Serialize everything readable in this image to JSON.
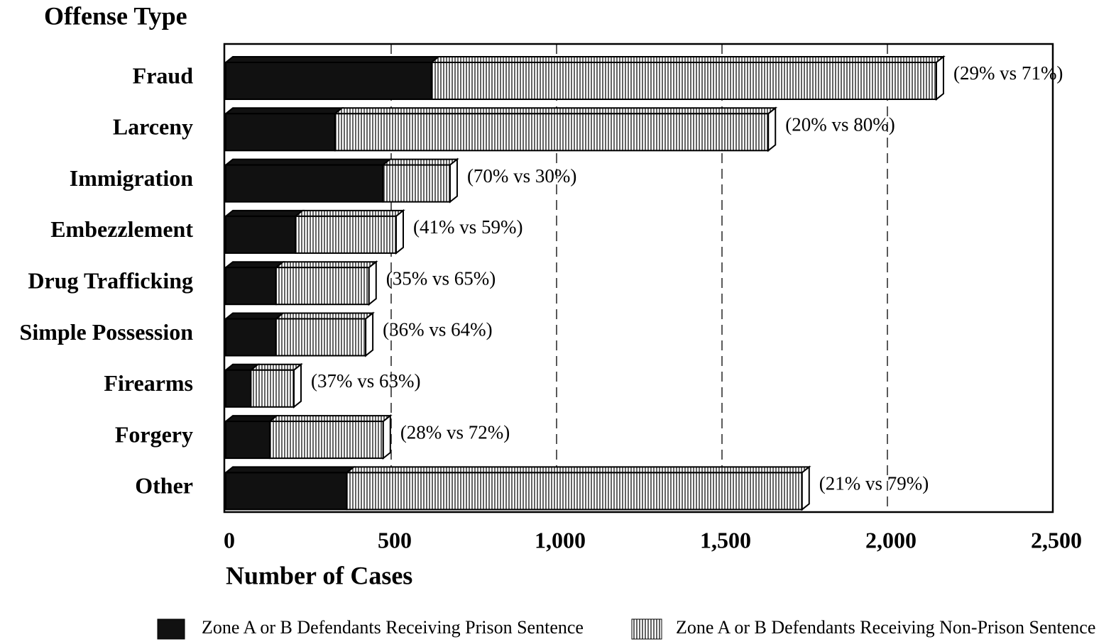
{
  "chart_data": {
    "type": "bar",
    "orientation": "horizontal",
    "stacked": true,
    "y_title": "Offense Type",
    "x_title": "Number of Cases",
    "categories": [
      "Fraud",
      "Larceny",
      "Immigration",
      "Embezzlement",
      "Drug Trafficking",
      "Simple Possession",
      "Firearms",
      "Forgery",
      "Other"
    ],
    "series": [
      {
        "name": "Zone A or B Defendants Receiving Prison Sentence",
        "color": "#111111",
        "pattern": "solid",
        "values": [
          622,
          330,
          475,
          211,
          152,
          152,
          76,
          133,
          366
        ]
      },
      {
        "name": "Zone A or B Defendants Receiving Non-Prison Sentence",
        "color": "#111111",
        "pattern": "vertical-hatch",
        "values": [
          1526,
          1310,
          203,
          304,
          281,
          271,
          130,
          343,
          1376
        ]
      }
    ],
    "bar_labels": [
      "(29% vs 71%)",
      "(20% vs 80%)",
      "(70% vs 30%)",
      "(41% vs 59%)",
      "(35% vs 65%)",
      "(36% vs 64%)",
      "(37% vs 63%)",
      "(28% vs 72%)",
      "(21% vs 79%)"
    ],
    "xlim": [
      0,
      2500
    ],
    "xticks": [
      0,
      500,
      {
        "value": 1000,
        "label": "1,000"
      },
      {
        "value": 1500,
        "label": "1,500"
      },
      {
        "value": 2000,
        "label": "2,000"
      },
      {
        "value": 2500,
        "label": "2,500"
      }
    ],
    "grid": true,
    "grid_style": "dashed",
    "legend": "bottom"
  }
}
